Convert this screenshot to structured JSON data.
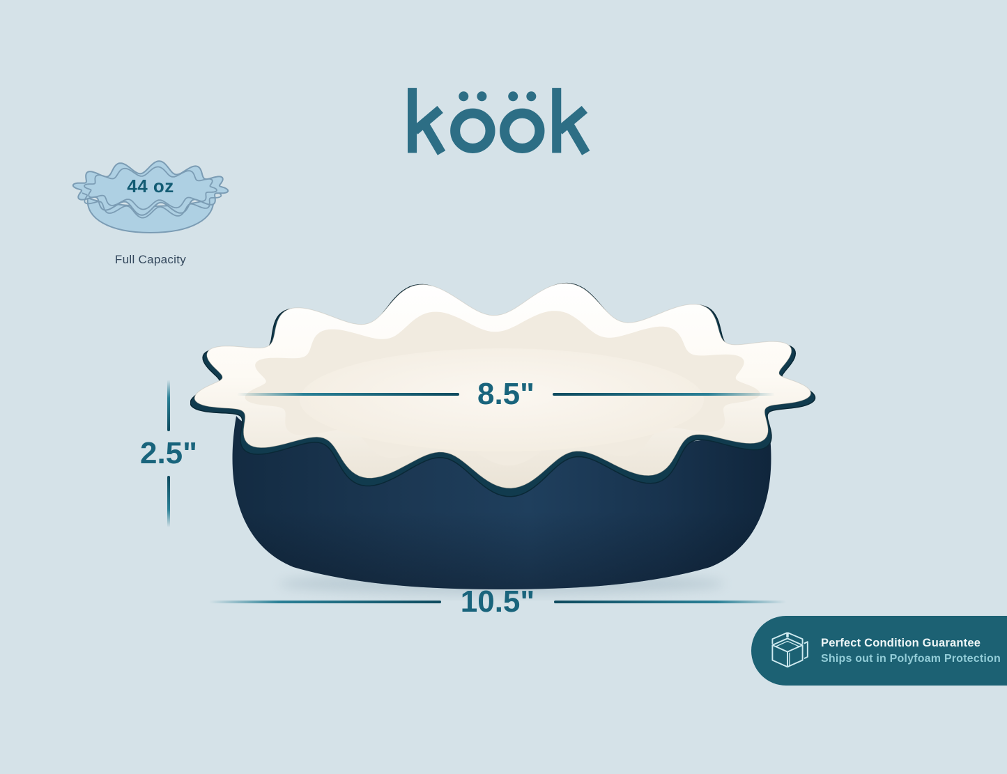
{
  "page": {
    "background": "#d5e2e8"
  },
  "brand": {
    "logo_text": "köök",
    "logo_color": "#2d6e85"
  },
  "capacity_badge": {
    "value": "44 oz",
    "caption": "Full Capacity"
  },
  "dimension_labels": {
    "rim_diameter": "8.5\"",
    "height": "2.5\"",
    "overall_diameter": "10.5\""
  },
  "guarantee_badge": {
    "title": "Perfect Condition Guarantee",
    "subtitle": "Ships out in Polyfoam Protection",
    "background": "#1c6173",
    "icon": "open-box-icon"
  },
  "product_colors": {
    "body_navy": "#1b3550",
    "interior_cream": "#f7f2ea",
    "glaze_edge_teal": "#113b4e",
    "dimension_line_teal": "#0e4a5e"
  }
}
